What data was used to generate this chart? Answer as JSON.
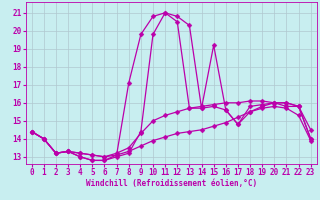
{
  "xlabel": "Windchill (Refroidissement éolien,°C)",
  "background_color": "#c8eef0",
  "grid_color": "#b0c8d0",
  "line_color": "#bb00aa",
  "xlim": [
    -0.5,
    23.5
  ],
  "ylim": [
    12.6,
    21.6
  ],
  "xticks": [
    0,
    1,
    2,
    3,
    4,
    5,
    6,
    7,
    8,
    9,
    10,
    11,
    12,
    13,
    14,
    15,
    16,
    17,
    18,
    19,
    20,
    21,
    22,
    23
  ],
  "yticks": [
    13,
    14,
    15,
    16,
    17,
    18,
    19,
    20,
    21
  ],
  "series": [
    {
      "x": [
        0,
        1,
        2,
        3,
        4,
        5,
        6,
        7,
        8,
        9,
        10,
        11,
        12,
        13,
        14,
        15,
        16,
        17,
        18,
        19,
        20,
        21,
        22,
        23
      ],
      "y": [
        14.4,
        14.0,
        13.2,
        13.3,
        13.0,
        12.8,
        12.8,
        13.0,
        13.2,
        14.4,
        19.8,
        21.0,
        20.8,
        20.3,
        15.7,
        19.2,
        15.6,
        14.8,
        15.8,
        15.9,
        16.0,
        15.8,
        15.8,
        14.5
      ]
    },
    {
      "x": [
        0,
        1,
        2,
        3,
        4,
        5,
        6,
        7,
        8,
        9,
        10,
        11,
        12,
        13,
        14,
        15,
        16,
        17,
        18,
        19,
        20,
        21,
        22,
        23
      ],
      "y": [
        14.4,
        14.0,
        13.2,
        13.3,
        13.0,
        12.8,
        12.8,
        13.1,
        17.1,
        19.8,
        20.8,
        21.0,
        20.5,
        15.7,
        15.7,
        15.8,
        15.6,
        14.8,
        15.5,
        15.8,
        16.0,
        16.0,
        15.8,
        14.0
      ]
    },
    {
      "x": [
        0,
        1,
        2,
        3,
        4,
        5,
        6,
        7,
        8,
        9,
        10,
        11,
        12,
        13,
        14,
        15,
        16,
        17,
        18,
        19,
        20,
        21,
        22,
        23
      ],
      "y": [
        14.4,
        14.0,
        13.2,
        13.3,
        13.2,
        13.1,
        13.0,
        13.2,
        13.5,
        14.3,
        15.0,
        15.3,
        15.5,
        15.7,
        15.8,
        15.9,
        16.0,
        16.0,
        16.1,
        16.1,
        16.0,
        16.0,
        15.8,
        14.0
      ]
    },
    {
      "x": [
        0,
        1,
        2,
        3,
        4,
        5,
        6,
        7,
        8,
        9,
        10,
        11,
        12,
        13,
        14,
        15,
        16,
        17,
        18,
        19,
        20,
        21,
        22,
        23
      ],
      "y": [
        14.4,
        14.0,
        13.2,
        13.3,
        13.2,
        13.1,
        13.0,
        13.1,
        13.3,
        13.6,
        13.9,
        14.1,
        14.3,
        14.4,
        14.5,
        14.7,
        14.9,
        15.2,
        15.5,
        15.7,
        15.8,
        15.7,
        15.3,
        13.9
      ]
    }
  ],
  "xlabel_fontsize": 5.5,
  "tick_fontsize": 5.5,
  "linewidth": 0.9,
  "markersize": 2.5
}
